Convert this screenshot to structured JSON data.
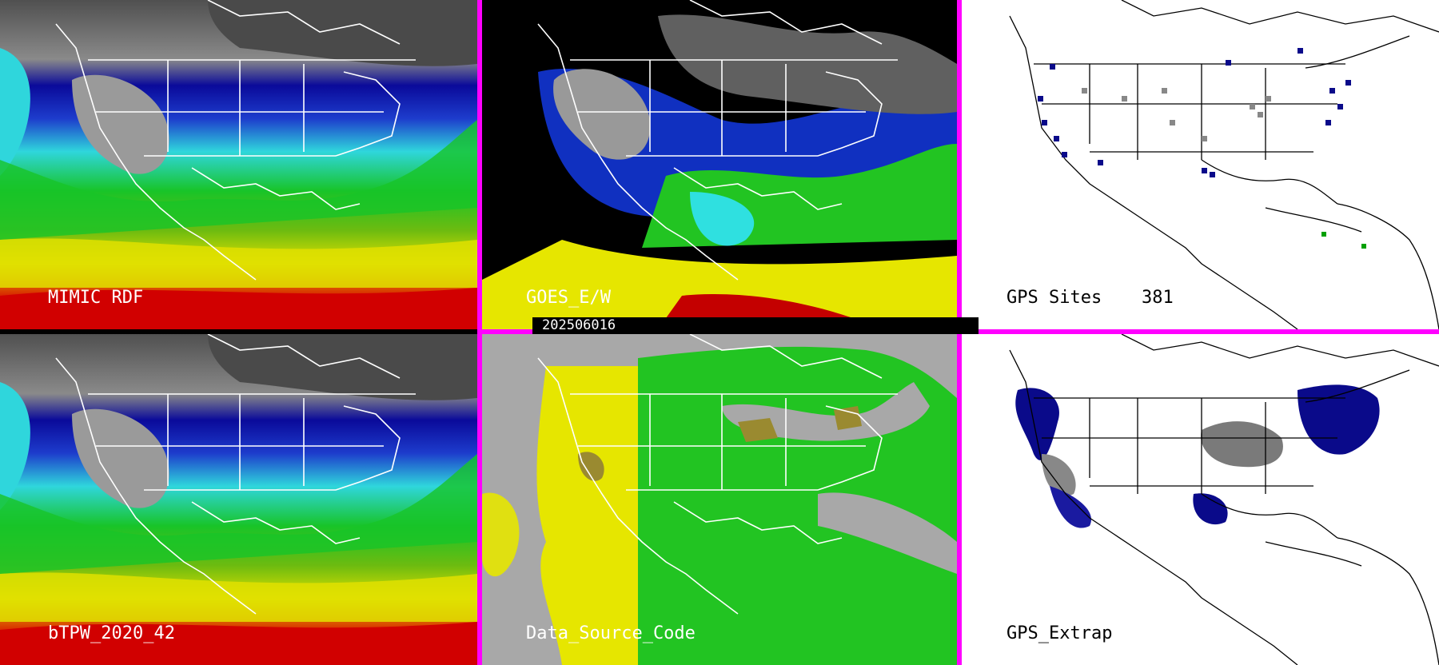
{
  "timestamp": "202506016",
  "panels": {
    "mimic": {
      "label": "MIMIC RDF"
    },
    "goes": {
      "label": "GOES_E/W"
    },
    "gps_sites": {
      "label": "GPS Sites",
      "count": "381"
    },
    "btpw": {
      "label": "bTPW_2020_42"
    },
    "data_source": {
      "label": "Data_Source_Code"
    },
    "gps_extrap": {
      "label": "GPS_Extrap"
    }
  },
  "colors": {
    "divider": "#ff00ff",
    "moist_red": "#d10000",
    "yellow": "#e6e600",
    "green": "#22c422",
    "cyan": "#2fe0e0",
    "blue": "#1030c0",
    "navy": "#0a0a8a",
    "gray": "#a8a8a8"
  }
}
